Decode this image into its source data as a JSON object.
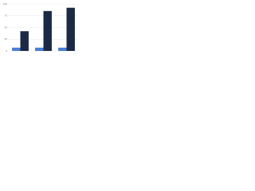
{
  "chart_data": {
    "type": "bar",
    "categories": [
      null,
      null,
      null
    ],
    "series": [
      {
        "color": "#4a7fd4",
        "values": [
          7,
          7,
          7
        ]
      },
      {
        "color": "#1b2a44",
        "values": [
          42,
          85,
          92
        ]
      }
    ],
    "ylim": [
      0,
      100
    ],
    "yticks": [
      0,
      25,
      50,
      75,
      100
    ],
    "grid": true
  }
}
